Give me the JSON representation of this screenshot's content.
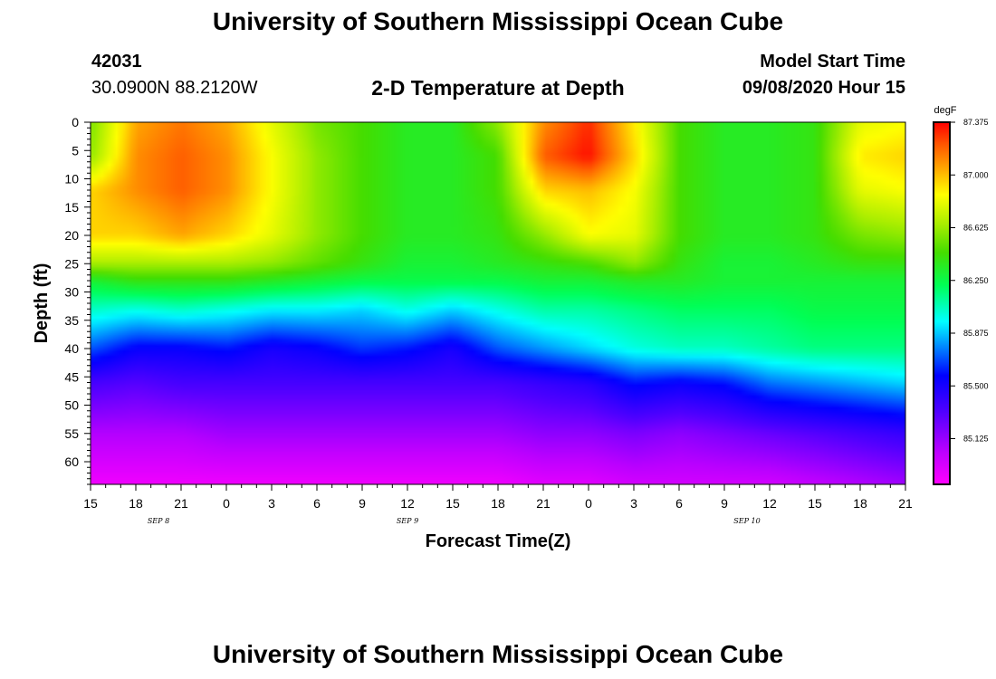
{
  "header": {
    "title": "University of Southern Mississippi Ocean Cube",
    "station_id": "42031",
    "location": "30.0900N 88.2120W",
    "subtitle": "2-D Temperature at Depth",
    "model_start_label": "Model Start Time",
    "model_start_value": "09/08/2020 Hour 15"
  },
  "footer": {
    "title": "University of Southern Mississippi Ocean Cube"
  },
  "chart_data": {
    "type": "heatmap",
    "title": "2-D Temperature at Depth",
    "xlabel": "Forecast Time(Z)",
    "ylabel": "Depth (ft)",
    "x_tick_labels": [
      "15",
      "18",
      "21",
      "0",
      "3",
      "6",
      "9",
      "12",
      "15",
      "18",
      "21",
      "0",
      "3",
      "6",
      "9",
      "12",
      "15",
      "18",
      "21"
    ],
    "x_hours": [
      0,
      3,
      6,
      9,
      12,
      15,
      18,
      21,
      24,
      27,
      30,
      33,
      36,
      39,
      42,
      45,
      48,
      51,
      54
    ],
    "date_labels": [
      {
        "label": "SEP 8",
        "hour": 4.5
      },
      {
        "label": "SEP 9",
        "hour": 21
      },
      {
        "label": "SEP 10",
        "hour": 43.5
      }
    ],
    "y_ticks": [
      0,
      5,
      10,
      15,
      20,
      25,
      30,
      35,
      40,
      45,
      50,
      55,
      60
    ],
    "ylim": [
      0,
      64
    ],
    "xlim": [
      0,
      54
    ],
    "colorbar": {
      "unit": "degF",
      "labels": [
        "87.375",
        "87.000",
        "86.625",
        "86.250",
        "85.875",
        "85.500",
        "85.125"
      ],
      "min": 84.8,
      "max": 87.375
    },
    "profile_depths": [
      0,
      6,
      12,
      20,
      25,
      28,
      33,
      40,
      46,
      55,
      64
    ],
    "profiles": [
      {
        "hour": 0,
        "temps": [
          86.55,
          86.6,
          86.95,
          86.95,
          86.65,
          86.3,
          86.05,
          85.7,
          85.35,
          85.05,
          84.85
        ]
      },
      {
        "hour": 3,
        "temps": [
          87.05,
          87.1,
          87.1,
          86.95,
          86.65,
          86.4,
          86.0,
          85.55,
          85.3,
          85.05,
          84.85
        ]
      },
      {
        "hour": 6,
        "temps": [
          87.15,
          87.2,
          87.2,
          87.05,
          86.65,
          86.4,
          86.05,
          85.55,
          85.35,
          85.05,
          84.85
        ]
      },
      {
        "hour": 9,
        "temps": [
          87.05,
          87.1,
          87.1,
          86.95,
          86.65,
          86.4,
          86.0,
          85.6,
          85.35,
          85.1,
          84.85
        ]
      },
      {
        "hour": 12,
        "temps": [
          86.8,
          86.85,
          86.85,
          86.8,
          86.6,
          86.35,
          85.95,
          85.5,
          85.35,
          85.1,
          84.85
        ]
      },
      {
        "hour": 15,
        "temps": [
          86.55,
          86.6,
          86.6,
          86.6,
          86.5,
          86.3,
          85.95,
          85.55,
          85.35,
          85.1,
          84.85
        ]
      },
      {
        "hour": 18,
        "temps": [
          86.45,
          86.45,
          86.45,
          86.45,
          86.4,
          86.25,
          85.9,
          85.65,
          85.35,
          85.1,
          84.85
        ]
      },
      {
        "hour": 21,
        "temps": [
          86.35,
          86.35,
          86.35,
          86.35,
          86.3,
          86.25,
          86.0,
          85.6,
          85.35,
          85.1,
          84.85
        ]
      },
      {
        "hour": 24,
        "temps": [
          86.35,
          86.35,
          86.35,
          86.35,
          86.3,
          86.25,
          85.9,
          85.5,
          85.35,
          85.1,
          84.85
        ]
      },
      {
        "hour": 27,
        "temps": [
          86.6,
          86.45,
          86.45,
          86.4,
          86.35,
          86.25,
          86.0,
          85.7,
          85.35,
          85.1,
          84.85
        ]
      },
      {
        "hour": 30,
        "temps": [
          87.1,
          87.2,
          86.95,
          86.6,
          86.4,
          86.3,
          86.1,
          85.8,
          85.4,
          85.15,
          84.9
        ]
      },
      {
        "hour": 33,
        "temps": [
          87.3,
          87.35,
          87.0,
          86.85,
          86.45,
          86.3,
          86.1,
          85.9,
          85.45,
          85.15,
          84.9
        ]
      },
      {
        "hour": 36,
        "temps": [
          86.9,
          86.95,
          86.85,
          86.8,
          86.6,
          86.35,
          86.15,
          86.0,
          85.6,
          85.2,
          84.95
        ]
      },
      {
        "hour": 39,
        "temps": [
          86.45,
          86.45,
          86.45,
          86.45,
          86.4,
          86.35,
          86.2,
          86.05,
          85.55,
          85.15,
          84.95
        ]
      },
      {
        "hour": 42,
        "temps": [
          86.35,
          86.35,
          86.35,
          86.35,
          86.3,
          86.3,
          86.2,
          86.05,
          85.6,
          85.2,
          84.95
        ]
      },
      {
        "hour": 45,
        "temps": [
          86.35,
          86.35,
          86.35,
          86.35,
          86.3,
          86.3,
          86.2,
          86.1,
          85.75,
          85.25,
          84.95
        ]
      },
      {
        "hour": 48,
        "temps": [
          86.4,
          86.4,
          86.4,
          86.4,
          86.35,
          86.3,
          86.25,
          86.15,
          85.8,
          85.3,
          85.0
        ]
      },
      {
        "hour": 51,
        "temps": [
          86.8,
          86.9,
          86.8,
          86.55,
          86.4,
          86.3,
          86.25,
          86.15,
          85.85,
          85.35,
          85.05
        ]
      },
      {
        "hour": 54,
        "temps": [
          86.85,
          86.95,
          86.85,
          86.6,
          86.4,
          86.3,
          86.25,
          86.15,
          85.9,
          85.4,
          85.1
        ]
      }
    ]
  }
}
